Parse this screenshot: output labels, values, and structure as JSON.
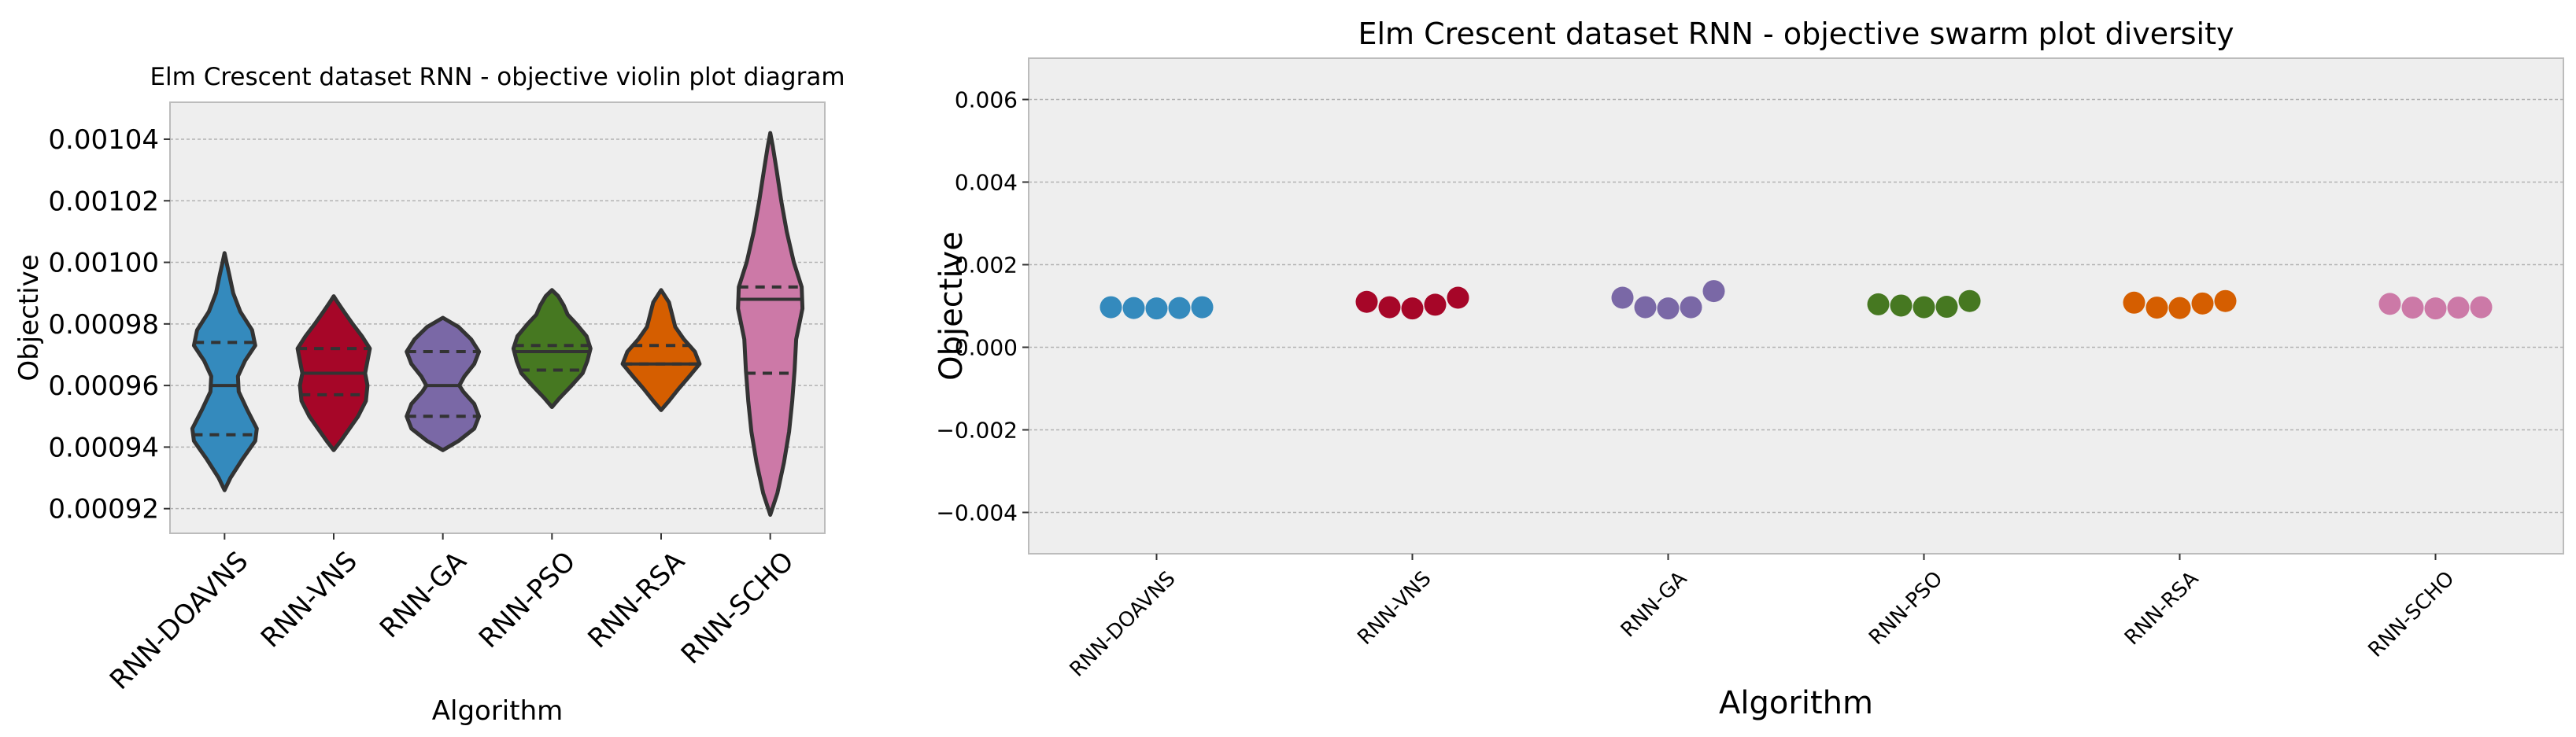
{
  "chart_data": [
    {
      "type": "violin",
      "title": "Elm Crescent dataset RNN -  objective violin plot diagram",
      "xlabel": "Algorithm",
      "ylabel": "Objective",
      "ylim": [
        0.000912,
        0.001052
      ],
      "yticks": [
        0.00092,
        0.00094,
        0.00096,
        0.00098,
        0.001,
        0.00102,
        0.00104
      ],
      "ytick_labels": [
        "0.00092",
        "0.00094",
        "0.00096",
        "0.00098",
        "0.00100",
        "0.00102",
        "0.00104"
      ],
      "grid": true,
      "categories": [
        "RNN-DOAVNS",
        "RNN-VNS",
        "RNN-GA",
        "RNN-PSO",
        "RNN-RSA",
        "RNN-SCHO"
      ],
      "colors": [
        "#348ABD",
        "#A60628",
        "#7A68A6",
        "#467821",
        "#D55E00",
        "#CC79A7"
      ],
      "series": [
        {
          "min": 0.000926,
          "max": 0.001003,
          "q1": 0.000944,
          "median": 0.00096,
          "q3": 0.000974,
          "profile": [
            [
              0.000926,
              0.0
            ],
            [
              0.00093,
              0.15
            ],
            [
              0.000936,
              0.45
            ],
            [
              0.000942,
              0.78
            ],
            [
              0.000946,
              0.82
            ],
            [
              0.000952,
              0.58
            ],
            [
              0.000958,
              0.36
            ],
            [
              0.000963,
              0.34
            ],
            [
              0.000968,
              0.52
            ],
            [
              0.000973,
              0.78
            ],
            [
              0.000978,
              0.7
            ],
            [
              0.000984,
              0.4
            ],
            [
              0.00099,
              0.22
            ],
            [
              0.000996,
              0.12
            ],
            [
              0.001,
              0.05
            ],
            [
              0.001003,
              0.0
            ]
          ]
        },
        {
          "min": 0.000939,
          "max": 0.000989,
          "q1": 0.000957,
          "median": 0.000964,
          "q3": 0.000972,
          "profile": [
            [
              0.000939,
              0.0
            ],
            [
              0.000942,
              0.18
            ],
            [
              0.000946,
              0.4
            ],
            [
              0.00095,
              0.62
            ],
            [
              0.000955,
              0.82
            ],
            [
              0.00096,
              0.86
            ],
            [
              0.000964,
              0.8
            ],
            [
              0.000968,
              0.86
            ],
            [
              0.000972,
              0.92
            ],
            [
              0.000976,
              0.72
            ],
            [
              0.00098,
              0.48
            ],
            [
              0.000984,
              0.26
            ],
            [
              0.000987,
              0.1
            ],
            [
              0.000989,
              0.0
            ]
          ]
        },
        {
          "min": 0.000939,
          "max": 0.000982,
          "q1": 0.00095,
          "median": 0.00096,
          "q3": 0.000971,
          "profile": [
            [
              0.000939,
              0.0
            ],
            [
              0.000942,
              0.4
            ],
            [
              0.000946,
              0.8
            ],
            [
              0.00095,
              0.92
            ],
            [
              0.000954,
              0.8
            ],
            [
              0.000958,
              0.52
            ],
            [
              0.00096,
              0.42
            ],
            [
              0.000963,
              0.55
            ],
            [
              0.000967,
              0.8
            ],
            [
              0.000971,
              0.92
            ],
            [
              0.000975,
              0.72
            ],
            [
              0.000979,
              0.4
            ],
            [
              0.000982,
              0.0
            ]
          ]
        },
        {
          "min": 0.000953,
          "max": 0.000991,
          "q1": 0.000965,
          "median": 0.000971,
          "q3": 0.000973,
          "profile": [
            [
              0.000953,
              0.0
            ],
            [
              0.000956,
              0.2
            ],
            [
              0.00096,
              0.5
            ],
            [
              0.000964,
              0.78
            ],
            [
              0.000968,
              0.9
            ],
            [
              0.000972,
              0.98
            ],
            [
              0.000976,
              0.88
            ],
            [
              0.00098,
              0.62
            ],
            [
              0.000983,
              0.4
            ],
            [
              0.000986,
              0.3
            ],
            [
              0.000989,
              0.16
            ],
            [
              0.000991,
              0.0
            ]
          ]
        },
        {
          "min": 0.000952,
          "max": 0.000991,
          "q1": 0.000967,
          "median": 0.000967,
          "q3": 0.000973,
          "profile": [
            [
              0.000952,
              0.0
            ],
            [
              0.000955,
              0.2
            ],
            [
              0.000959,
              0.45
            ],
            [
              0.000963,
              0.72
            ],
            [
              0.000967,
              0.98
            ],
            [
              0.000971,
              0.86
            ],
            [
              0.000975,
              0.58
            ],
            [
              0.000979,
              0.36
            ],
            [
              0.000983,
              0.28
            ],
            [
              0.000987,
              0.2
            ],
            [
              0.000991,
              0.0
            ]
          ]
        },
        {
          "min": 0.000918,
          "max": 0.001042,
          "q1": 0.000964,
          "median": 0.000988,
          "q3": 0.000992,
          "profile": [
            [
              0.000918,
              0.0
            ],
            [
              0.000925,
              0.18
            ],
            [
              0.000935,
              0.35
            ],
            [
              0.000945,
              0.48
            ],
            [
              0.000955,
              0.56
            ],
            [
              0.000965,
              0.62
            ],
            [
              0.000975,
              0.66
            ],
            [
              0.000985,
              0.82
            ],
            [
              0.000992,
              0.8
            ],
            [
              0.001,
              0.6
            ],
            [
              0.00101,
              0.42
            ],
            [
              0.00102,
              0.28
            ],
            [
              0.00103,
              0.16
            ],
            [
              0.001038,
              0.06
            ],
            [
              0.001042,
              0.0
            ]
          ]
        }
      ]
    },
    {
      "type": "scatter",
      "title": "Elm Crescent dataset RNN -  objective swarm plot diversity",
      "xlabel": "Algorithm",
      "ylabel": "Objective",
      "ylim": [
        -0.005,
        0.007
      ],
      "yticks": [
        -0.004,
        -0.002,
        0.0,
        0.002,
        0.004,
        0.006
      ],
      "ytick_labels": [
        "−0.004",
        "−0.002",
        "0.000",
        "0.002",
        "0.004",
        "0.006"
      ],
      "grid": true,
      "categories": [
        "RNN-DOAVNS",
        "RNN-VNS",
        "RNN-GA",
        "RNN-PSO",
        "RNN-RSA",
        "RNN-SCHO"
      ],
      "colors": [
        "#348ABD",
        "#A60628",
        "#7A68A6",
        "#467821",
        "#D55E00",
        "#CC79A7"
      ],
      "series": [
        {
          "name": "RNN-DOAVNS",
          "values": [
            0.00097,
            0.00095,
            0.00094,
            0.00095,
            0.00097
          ]
        },
        {
          "name": "RNN-VNS",
          "values": [
            0.0011,
            0.00097,
            0.00094,
            0.00103,
            0.0012
          ]
        },
        {
          "name": "RNN-GA",
          "values": [
            0.0012,
            0.00097,
            0.00094,
            0.00097,
            0.00136
          ]
        },
        {
          "name": "RNN-PSO",
          "values": [
            0.00104,
            0.00101,
            0.00097,
            0.00098,
            0.00112
          ]
        },
        {
          "name": "RNN-RSA",
          "values": [
            0.00108,
            0.00096,
            0.00095,
            0.00106,
            0.00112
          ]
        },
        {
          "name": "RNN-SCHO",
          "values": [
            0.00105,
            0.00096,
            0.00094,
            0.00096,
            0.00097
          ]
        }
      ]
    }
  ]
}
